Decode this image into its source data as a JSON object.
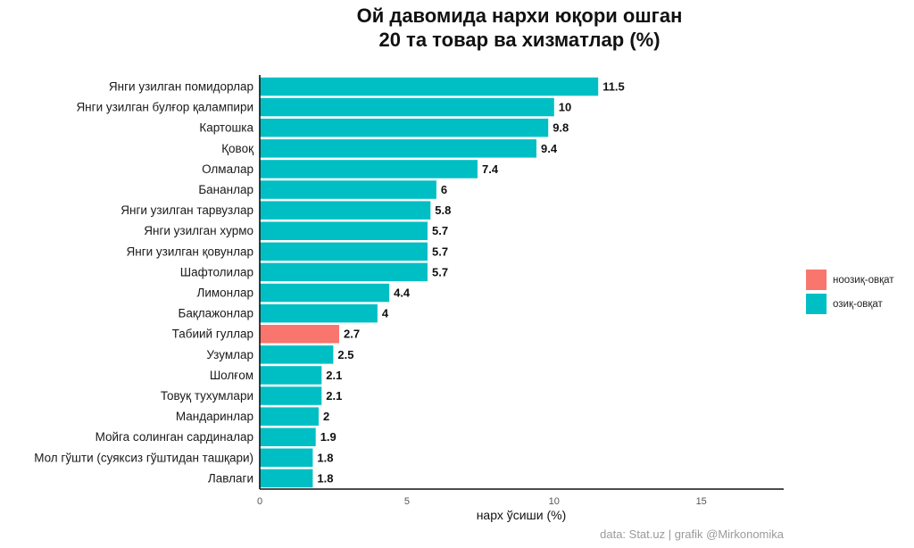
{
  "chart_data": {
    "type": "bar",
    "orientation": "horizontal",
    "title": [
      "Ой давомида нархи юқори ошган",
      "20 та товар ва хизматлар (%)"
    ],
    "xlabel": "нарх ўсиши (%)",
    "ylabel": "",
    "xlim": [
      0,
      17.8
    ],
    "xticks": [
      0,
      5,
      10,
      15
    ],
    "grid": false,
    "legend_position": "right",
    "colors": {
      "non_food": "#F8766D",
      "food": "#00BFC4"
    },
    "legend": [
      {
        "key": "non_food",
        "label": "ноозиқ-овқат"
      },
      {
        "key": "food",
        "label": "озиқ-овқат"
      }
    ],
    "categories": [
      "Янги узилган помидорлар",
      "Янги узилган булғор қалампири",
      "Картошка",
      "Қовоқ",
      "Олмалар",
      "Бананлар",
      "Янги узилган тарвузлар",
      "Янги узилган хурмо",
      "Янги узилган қовунлар",
      "Шафтолилар",
      "Лимонлар",
      "Бақлажонлар",
      "Табиий гуллар",
      "Узумлар",
      "Шолғом",
      "Товуқ тухумлари",
      "Мандаринлар",
      "Мойга солинган сардиналар",
      "Мол гўшти (суяксиз гўштидан ташқари)",
      "Лавлаги"
    ],
    "values": [
      11.5,
      10,
      9.8,
      9.4,
      7.4,
      6,
      5.8,
      5.7,
      5.7,
      5.7,
      4.4,
      4,
      2.7,
      2.5,
      2.1,
      2.1,
      2,
      1.9,
      1.8,
      1.8
    ],
    "groups": [
      "food",
      "food",
      "food",
      "food",
      "food",
      "food",
      "food",
      "food",
      "food",
      "food",
      "food",
      "food",
      "non_food",
      "food",
      "food",
      "food",
      "food",
      "food",
      "food",
      "food"
    ],
    "caption": "data:  Stat.uz | grafik @Mirkonomika"
  }
}
